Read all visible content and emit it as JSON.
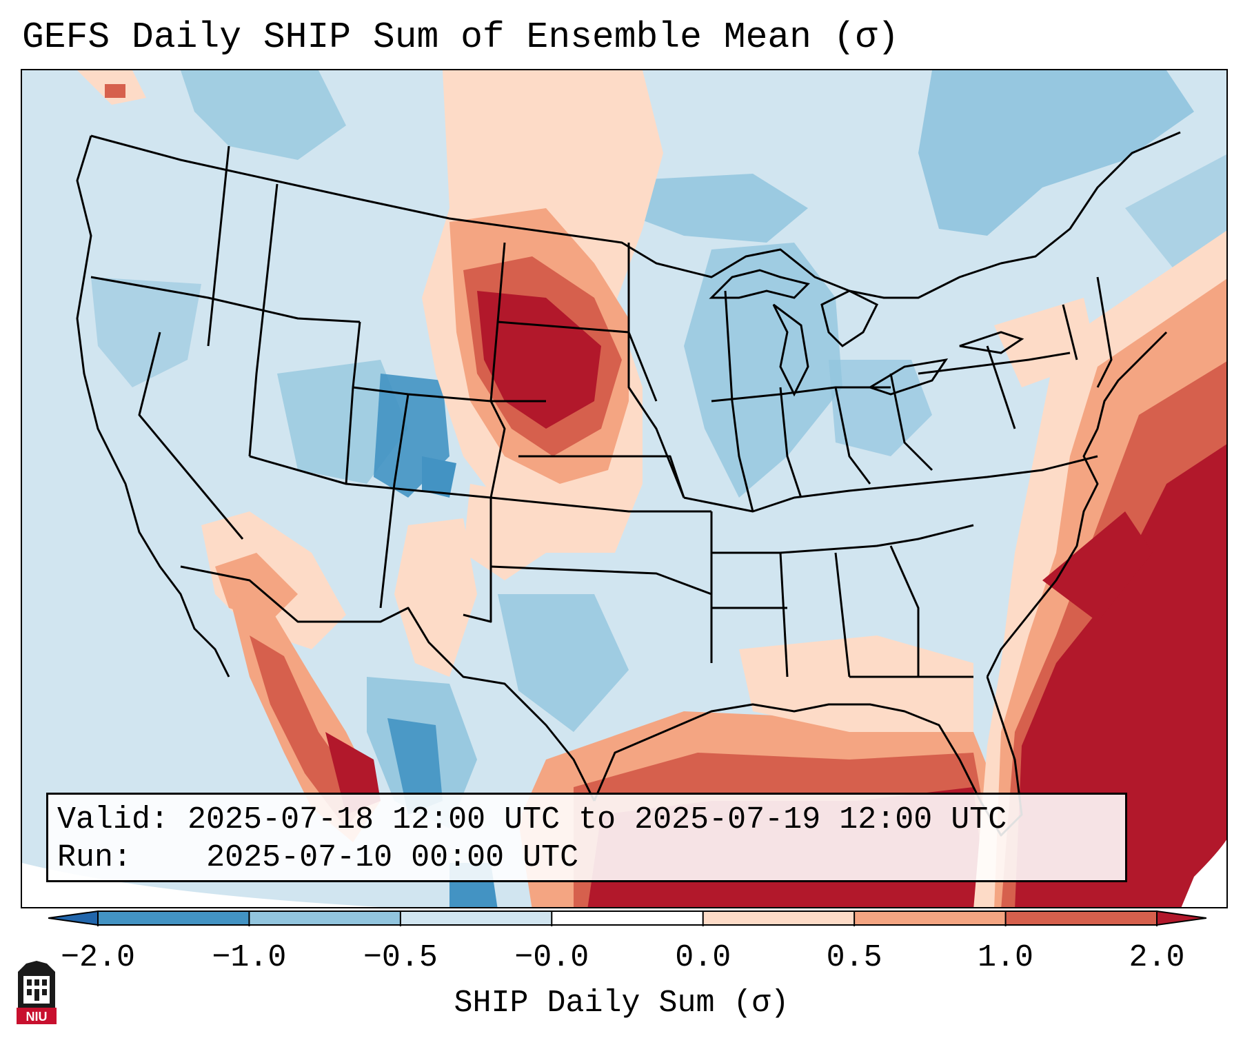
{
  "title": "GEFS Daily SHIP Sum of Ensemble Mean (σ)",
  "info": {
    "valid_label": "Valid:",
    "valid_value": "2025-07-18 12:00 UTC to 2025-07-19 12:00 UTC",
    "run_label": "Run:",
    "run_value": "2025-07-10 00:00 UTC"
  },
  "colorbar": {
    "label": "SHIP Daily Sum (σ)",
    "ticks": [
      "−2.0",
      "−1.0",
      "−0.5",
      "−0.0",
      "0.0",
      "0.5",
      "1.0",
      "2.0"
    ],
    "colors": [
      "#2166ac",
      "#4393c3",
      "#92c5de",
      "#d1e5f0",
      "#ffffff",
      "#fddbc7",
      "#f4a582",
      "#d6604d",
      "#b2182b"
    ]
  },
  "map": {
    "region": "Contiguous United States",
    "anomaly_highs": [
      "Northern Plains",
      "Gulf of Mexico",
      "Western Atlantic",
      "Gulf of California"
    ],
    "anomaly_lows": [
      "Colorado / Utah",
      "Northern Mexico",
      "Great Lakes",
      "Eastern Canada"
    ]
  },
  "logo": {
    "text": "NIU",
    "name": "Northern Illinois University"
  }
}
